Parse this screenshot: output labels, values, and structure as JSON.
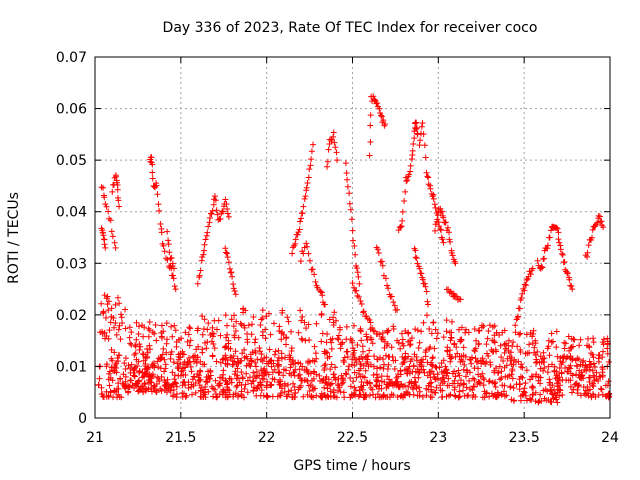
{
  "chart_data": {
    "type": "scatter",
    "title": "Day 336 of 2023, Rate Of TEC Index for receiver coco",
    "xlabel": "GPS time / hours",
    "ylabel": "ROTI / TECUs",
    "xlim": [
      21,
      24
    ],
    "ylim": [
      0,
      0.07
    ],
    "xticks": [
      21,
      21.5,
      22,
      22.5,
      23,
      23.5,
      24
    ],
    "xtick_labels": [
      "21",
      "21.5",
      "22",
      "22.5",
      "23",
      "23.5",
      "24"
    ],
    "yticks": [
      0,
      0.01,
      0.02,
      0.03,
      0.04,
      0.05,
      0.06,
      0.07
    ],
    "ytick_labels": [
      "0",
      "0.01",
      "0.02",
      "0.03",
      "0.04",
      "0.05",
      "0.06",
      "0.07"
    ],
    "grid": true,
    "marker": "plus",
    "color": "#ff0000",
    "arcs": [
      [
        [
          21.04,
          0.045
        ],
        [
          21.06,
          0.042
        ],
        [
          21.09,
          0.038
        ],
        [
          21.12,
          0.033
        ]
      ],
      [
        [
          21.1,
          0.044
        ],
        [
          21.12,
          0.047
        ],
        [
          21.13,
          0.045
        ],
        [
          21.14,
          0.041
        ]
      ],
      [
        [
          21.04,
          0.037
        ],
        [
          21.05,
          0.035
        ],
        [
          21.06,
          0.033
        ]
      ],
      [
        [
          21.32,
          0.05
        ],
        [
          21.33,
          0.05
        ],
        [
          21.34,
          0.045
        ],
        [
          21.36,
          0.045
        ],
        [
          21.38,
          0.038
        ],
        [
          21.4,
          0.033
        ],
        [
          21.43,
          0.03
        ],
        [
          21.45,
          0.028
        ],
        [
          21.47,
          0.025
        ]
      ],
      [
        [
          21.42,
          0.036
        ],
        [
          21.44,
          0.031
        ],
        [
          21.46,
          0.029
        ]
      ],
      [
        [
          21.6,
          0.026
        ],
        [
          21.62,
          0.03
        ],
        [
          21.64,
          0.034
        ],
        [
          21.66,
          0.037
        ],
        [
          21.68,
          0.04
        ],
        [
          21.7,
          0.043
        ],
        [
          21.72,
          0.038
        ],
        [
          21.74,
          0.04
        ],
        [
          21.76,
          0.042
        ],
        [
          21.78,
          0.039
        ]
      ],
      [
        [
          21.76,
          0.033
        ],
        [
          21.78,
          0.03
        ],
        [
          21.8,
          0.027
        ],
        [
          21.82,
          0.024
        ]
      ],
      [
        [
          22.15,
          0.032
        ],
        [
          22.17,
          0.035
        ],
        [
          22.19,
          0.037
        ],
        [
          22.21,
          0.04
        ],
        [
          22.23,
          0.044
        ],
        [
          22.25,
          0.048
        ],
        [
          22.27,
          0.053
        ]
      ],
      [
        [
          22.2,
          0.031
        ],
        [
          22.23,
          0.034
        ],
        [
          22.26,
          0.029
        ],
        [
          22.29,
          0.026
        ],
        [
          22.32,
          0.024
        ],
        [
          22.34,
          0.022
        ]
      ],
      [
        [
          22.35,
          0.049
        ],
        [
          22.37,
          0.054
        ],
        [
          22.39,
          0.055
        ],
        [
          22.41,
          0.05
        ]
      ],
      [
        [
          22.46,
          0.049
        ],
        [
          22.48,
          0.044
        ],
        [
          22.5,
          0.036
        ],
        [
          22.52,
          0.03
        ],
        [
          22.54,
          0.026
        ]
      ],
      [
        [
          22.5,
          0.026
        ],
        [
          22.53,
          0.024
        ],
        [
          22.56,
          0.021
        ],
        [
          22.59,
          0.019
        ],
        [
          22.62,
          0.017
        ],
        [
          22.66,
          0.016
        ],
        [
          22.7,
          0.014
        ]
      ],
      [
        [
          22.6,
          0.051
        ],
        [
          22.61,
          0.062
        ],
        [
          22.63,
          0.062
        ],
        [
          22.65,
          0.06
        ],
        [
          22.67,
          0.058
        ],
        [
          22.69,
          0.057
        ]
      ],
      [
        [
          22.64,
          0.033
        ],
        [
          22.67,
          0.03
        ],
        [
          22.7,
          0.026
        ],
        [
          22.73,
          0.023
        ],
        [
          22.76,
          0.021
        ]
      ],
      [
        [
          22.77,
          0.037
        ],
        [
          22.79,
          0.038
        ],
        [
          22.81,
          0.046
        ],
        [
          22.83,
          0.047
        ],
        [
          22.85,
          0.051
        ],
        [
          22.86,
          0.056
        ],
        [
          22.87,
          0.057
        ],
        [
          22.88,
          0.055
        ]
      ],
      [
        [
          22.86,
          0.033
        ],
        [
          22.88,
          0.03
        ],
        [
          22.9,
          0.028
        ],
        [
          22.92,
          0.026
        ],
        [
          22.94,
          0.022
        ]
      ],
      [
        [
          22.89,
          0.053
        ],
        [
          22.91,
          0.057
        ],
        [
          22.93,
          0.048
        ],
        [
          22.95,
          0.045
        ],
        [
          22.97,
          0.043
        ],
        [
          22.99,
          0.04
        ],
        [
          23.01,
          0.037
        ],
        [
          23.03,
          0.034
        ]
      ],
      [
        [
          22.98,
          0.036
        ],
        [
          23.0,
          0.04
        ],
        [
          23.02,
          0.04
        ],
        [
          23.04,
          0.038
        ],
        [
          23.06,
          0.036
        ],
        [
          23.08,
          0.032
        ],
        [
          23.1,
          0.03
        ]
      ],
      [
        [
          23.05,
          0.025
        ],
        [
          23.08,
          0.024
        ],
        [
          23.1,
          0.024
        ],
        [
          23.13,
          0.023
        ]
      ],
      [
        [
          23.45,
          0.018
        ],
        [
          23.47,
          0.021
        ],
        [
          23.49,
          0.024
        ],
        [
          23.51,
          0.026
        ],
        [
          23.53,
          0.028
        ],
        [
          23.55,
          0.029
        ]
      ],
      [
        [
          23.58,
          0.03
        ],
        [
          23.6,
          0.029
        ],
        [
          23.62,
          0.032
        ],
        [
          23.64,
          0.034
        ],
        [
          23.66,
          0.037
        ],
        [
          23.68,
          0.037
        ],
        [
          23.7,
          0.036
        ]
      ],
      [
        [
          23.7,
          0.035
        ],
        [
          23.72,
          0.032
        ],
        [
          23.74,
          0.029
        ],
        [
          23.76,
          0.027
        ],
        [
          23.78,
          0.025
        ]
      ],
      [
        [
          23.86,
          0.031
        ],
        [
          23.88,
          0.034
        ],
        [
          23.9,
          0.036
        ],
        [
          23.92,
          0.038
        ],
        [
          23.94,
          0.039
        ],
        [
          23.96,
          0.037
        ]
      ]
    ],
    "bands": [
      {
        "x": [
          21.02,
          21.2
        ],
        "y": [
          0.004,
          0.024
        ],
        "n": 90
      },
      {
        "x": [
          21.2,
          21.45
        ],
        "y": [
          0.005,
          0.019
        ],
        "n": 140
      },
      {
        "x": [
          21.45,
          21.8
        ],
        "y": [
          0.004,
          0.02
        ],
        "n": 170
      },
      {
        "x": [
          21.8,
          22.1
        ],
        "y": [
          0.004,
          0.022
        ],
        "n": 150
      },
      {
        "x": [
          22.1,
          22.45
        ],
        "y": [
          0.004,
          0.021
        ],
        "n": 150
      },
      {
        "x": [
          22.45,
          22.8
        ],
        "y": [
          0.004,
          0.018
        ],
        "n": 150
      },
      {
        "x": [
          22.8,
          23.1
        ],
        "y": [
          0.004,
          0.02
        ],
        "n": 140
      },
      {
        "x": [
          23.1,
          23.4
        ],
        "y": [
          0.004,
          0.018
        ],
        "n": 140
      },
      {
        "x": [
          23.4,
          23.7
        ],
        "y": [
          0.003,
          0.017
        ],
        "n": 130
      },
      {
        "x": [
          23.7,
          24.0
        ],
        "y": [
          0.004,
          0.016
        ],
        "n": 130
      }
    ],
    "dense_core": {
      "x": [
        21.02,
        24.0
      ],
      "y": [
        0.006,
        0.012
      ],
      "n": 380
    }
  }
}
